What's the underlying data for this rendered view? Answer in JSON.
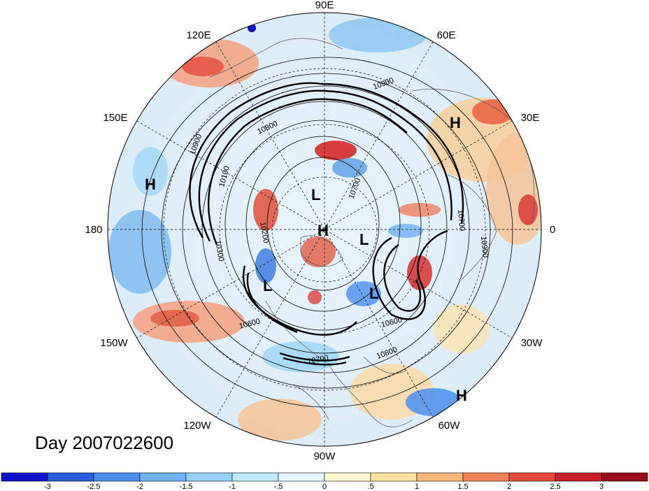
{
  "title": "Day 2007022600",
  "longitude_labels": [
    "90E",
    "60E",
    "30E",
    "0",
    "30W",
    "60W",
    "90W",
    "120W",
    "150W",
    "180",
    "150E",
    "120E"
  ],
  "contour_labels": [
    "10900",
    "10800",
    "10700",
    "10600",
    "10300",
    "10200",
    "10100",
    "10900",
    "10700",
    "10800",
    "10600",
    "10700",
    "10900"
  ],
  "pressure_centers": [
    "H",
    "H",
    "H",
    "L",
    "L",
    "L",
    "L",
    "H",
    "H"
  ],
  "colorbar": {
    "ticks": [
      "-3",
      "-2.5",
      "-2",
      "-1.5",
      "-1",
      "-.5",
      "0",
      ".5",
      "1",
      "1.5",
      "2",
      "2.5",
      "3"
    ],
    "colors": [
      "#1010c8",
      "#2a5fe0",
      "#4a8ff0",
      "#6fb2f7",
      "#96d2fb",
      "#c0e9fd",
      "#e4f6fe",
      "#fff8d0",
      "#fde3a0",
      "#f9b878",
      "#f4825a",
      "#e84a3c",
      "#c81f2a",
      "#960d1e"
    ]
  }
}
